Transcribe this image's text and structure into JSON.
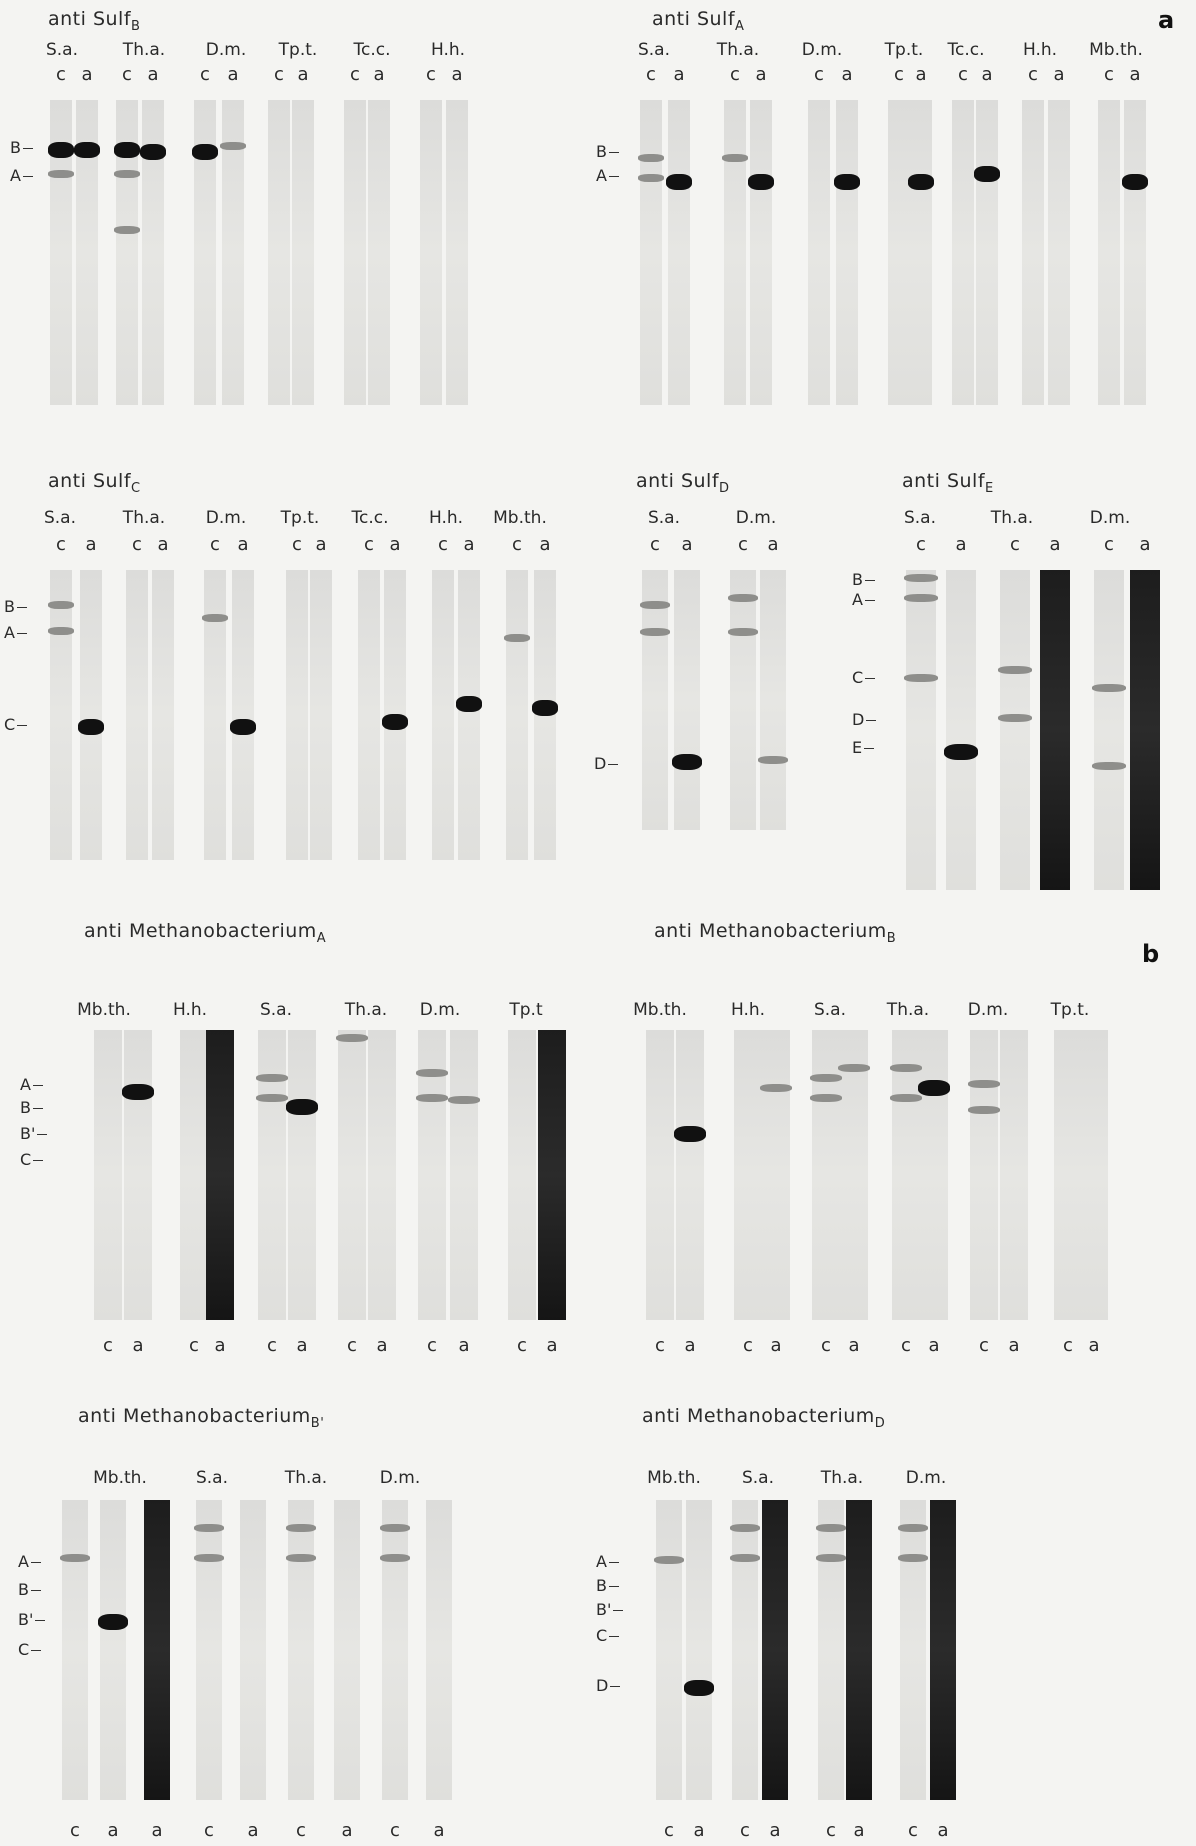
{
  "figure_letters": {
    "a": "a",
    "b": "b"
  },
  "lane_labels": {
    "c": "c",
    "a": "a"
  },
  "panels": [
    {
      "id": "sulf-b",
      "title": "anti Sulf",
      "title_sub": "B",
      "species": [
        "S.a.",
        "Th.a.",
        "D.m.",
        "Tp.t.",
        "Tc.c.",
        "H.h."
      ],
      "markers": [
        "B",
        "A"
      ]
    },
    {
      "id": "sulf-a",
      "title": "anti Sulf",
      "title_sub": "A",
      "species": [
        "S.a.",
        "Th.a.",
        "D.m.",
        "Tp.t.",
        "Tc.c.",
        "H.h.",
        "Mb.th."
      ],
      "markers": [
        "B",
        "A"
      ]
    },
    {
      "id": "sulf-c",
      "title": "anti Sulf",
      "title_sub": "C",
      "species": [
        "S.a.",
        "Th.a.",
        "D.m.",
        "Tp.t.",
        "Tc.c.",
        "H.h.",
        "Mb.th."
      ],
      "markers": [
        "B",
        "A",
        "C"
      ]
    },
    {
      "id": "sulf-d",
      "title": "anti Sulf",
      "title_sub": "D",
      "species": [
        "S.a.",
        "D.m."
      ],
      "markers": [
        "D"
      ]
    },
    {
      "id": "sulf-e",
      "title": "anti Sulf",
      "title_sub": "E",
      "species": [
        "S.a.",
        "Th.a.",
        "D.m."
      ],
      "markers": [
        "B",
        "A",
        "C",
        "D",
        "E"
      ]
    },
    {
      "id": "mb-a",
      "title": "anti Methanobacterium",
      "title_sub": "A",
      "species": [
        "Mb.th.",
        "H.h.",
        "S.a.",
        "Th.a.",
        "D.m.",
        "Tp.t"
      ],
      "markers": [
        "A",
        "B",
        "B'",
        "C"
      ]
    },
    {
      "id": "mb-b",
      "title": "anti Methanobacterium",
      "title_sub": "B",
      "species": [
        "Mb.th.",
        "H.h.",
        "S.a.",
        "Th.a.",
        "D.m.",
        "Tp.t."
      ],
      "markers": []
    },
    {
      "id": "mb-bp",
      "title": "anti Methanobacterium",
      "title_sub": "B'",
      "species": [
        "Mb.th.",
        "S.a.",
        "Th.a.",
        "D.m."
      ],
      "markers": [
        "A",
        "B",
        "B'",
        "C"
      ]
    },
    {
      "id": "mb-d",
      "title": "anti Methanobacterium",
      "title_sub": "D",
      "species": [
        "Mb.th.",
        "S.a.",
        "Th.a.",
        "D.m."
      ],
      "markers": [
        "A",
        "B",
        "B'",
        "C",
        "D"
      ]
    }
  ]
}
